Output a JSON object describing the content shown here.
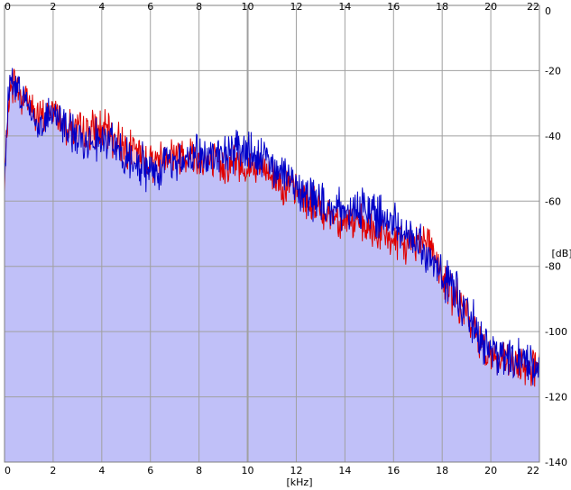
{
  "chart_data": {
    "type": "area",
    "xlabel": "[kHz]",
    "ylabel": "[dB]",
    "xlim": [
      0,
      22
    ],
    "ylim": [
      -140,
      0
    ],
    "x_ticks": [
      "0",
      "2",
      "4",
      "6",
      "8",
      "10",
      "12",
      "14",
      "16",
      "18",
      "20",
      "22"
    ],
    "y_ticks": [
      "0",
      "-20",
      "-40",
      "-60",
      "-80",
      "-100",
      "-120",
      "-140"
    ],
    "grid": true,
    "colors": {
      "red_line": "#e00000",
      "blue_line": "#0000c8",
      "blue_fill": "#c0c0f8",
      "red_fill": "#f8c0c8",
      "grid": "#a0a0a0"
    },
    "series": [
      {
        "color": "red",
        "x": [
          0,
          0.15,
          0.3,
          0.5,
          0.7,
          0.9,
          1.1,
          1.3,
          1.5,
          1.7,
          1.9,
          2.2,
          2.5,
          2.8,
          3.2,
          3.6,
          4.0,
          4.4,
          4.8,
          5.2,
          5.6,
          6.0,
          6.4,
          6.8,
          7.2,
          7.6,
          8.0,
          8.5,
          9.0,
          9.5,
          10.0,
          10.5,
          11.0,
          11.5,
          12.0,
          12.5,
          13.0,
          13.5,
          14.0,
          14.5,
          15.0,
          15.5,
          16.0,
          16.5,
          17.0,
          17.3,
          17.6,
          17.9,
          18.2,
          18.6,
          19.0,
          19.4,
          19.8,
          20.2,
          20.6,
          21.0,
          21.4,
          21.8,
          22.0
        ],
        "values": [
          -57,
          -30,
          -24,
          -25,
          -29,
          -27,
          -31,
          -34,
          -35,
          -34,
          -32,
          -33,
          -36,
          -38,
          -39,
          -38,
          -38,
          -40,
          -42,
          -44,
          -46,
          -48,
          -47,
          -45,
          -46,
          -45,
          -47,
          -48,
          -49,
          -48,
          -50,
          -50,
          -52,
          -55,
          -57,
          -60,
          -63,
          -64,
          -66,
          -67,
          -69,
          -70,
          -72,
          -74,
          -72,
          -70,
          -74,
          -83,
          -86,
          -90,
          -95,
          -101,
          -105,
          -108,
          -110,
          -111,
          -110,
          -111,
          -110
        ]
      },
      {
        "color": "blue",
        "x": [
          0,
          0.15,
          0.3,
          0.5,
          0.7,
          0.9,
          1.1,
          1.3,
          1.5,
          1.7,
          1.9,
          2.2,
          2.5,
          2.8,
          3.2,
          3.6,
          4.0,
          4.4,
          4.8,
          5.2,
          5.6,
          6.0,
          6.4,
          6.8,
          7.2,
          7.6,
          8.0,
          8.5,
          9.0,
          9.5,
          10.0,
          10.5,
          11.0,
          11.5,
          12.0,
          12.5,
          13.0,
          13.5,
          14.0,
          14.5,
          15.0,
          15.5,
          16.0,
          16.5,
          17.0,
          17.3,
          17.6,
          17.9,
          18.2,
          18.6,
          19.0,
          19.4,
          19.8,
          20.2,
          20.6,
          21.0,
          21.4,
          21.8,
          22.0
        ],
        "values": [
          -56,
          -27,
          -22,
          -24,
          -28,
          -30,
          -33,
          -35,
          -36,
          -35,
          -33,
          -34,
          -37,
          -40,
          -41,
          -40,
          -41,
          -43,
          -45,
          -47,
          -49,
          -51,
          -50,
          -48,
          -47,
          -46,
          -46,
          -46,
          -46,
          -45,
          -45,
          -47,
          -49,
          -52,
          -55,
          -58,
          -60,
          -62,
          -63,
          -62,
          -63,
          -65,
          -67,
          -69,
          -72,
          -75,
          -78,
          -82,
          -85,
          -88,
          -93,
          -99,
          -104,
          -108,
          -109,
          -110,
          -109,
          -110,
          -108
        ]
      }
    ]
  }
}
